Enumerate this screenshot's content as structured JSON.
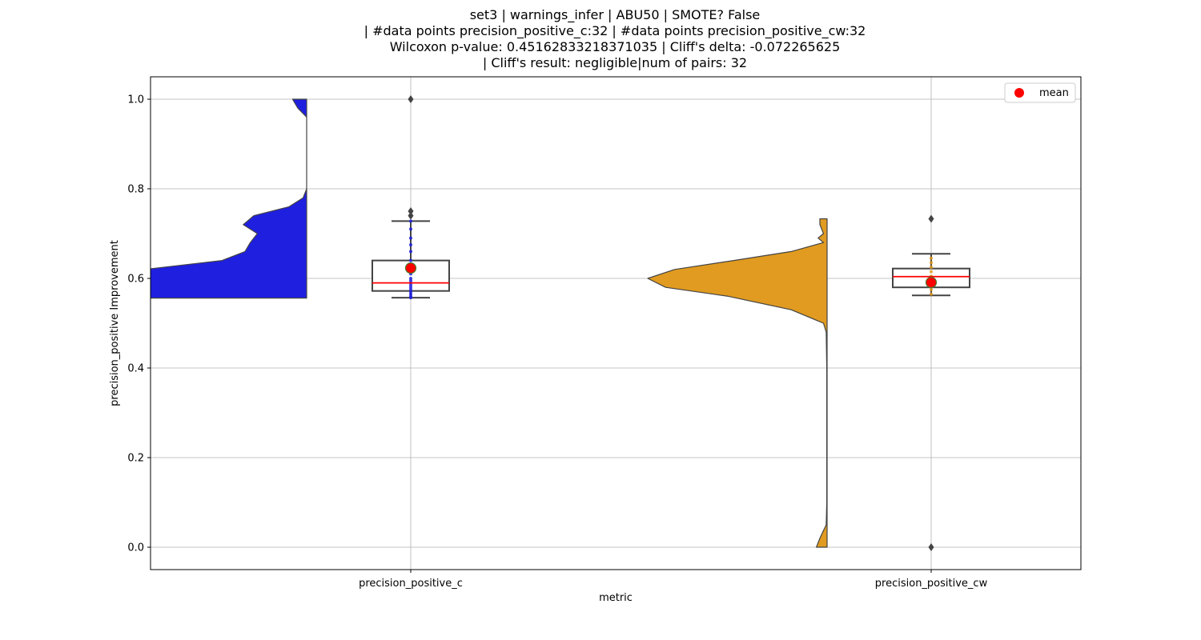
{
  "title_lines": [
    "set3 | warnings_infer | ABU50 | SMOTE? False",
    "| #data points precision_positive_c:32 | #data points precision_positive_cw:32",
    "Wilcoxon p-value: 0.45162833218371035 | Cliff's delta: -0.072265625",
    "| Cliff's result: negligible|num of pairs: 32"
  ],
  "chart_data": {
    "type": "violin+box",
    "title": "set3 | warnings_infer | ABU50 | SMOTE? False | #data points precision_positive_c:32 | #data points precision_positive_cw:32 Wilcoxon p-value: 0.45162833218371035 | Cliff's delta: -0.072265625 | Cliff's result: negligible|num of pairs: 32",
    "xlabel": "metric",
    "ylabel": "precision_positive Improvement",
    "categories": [
      "precision_positive_c",
      "precision_positive_cw"
    ],
    "ylim": [
      -0.05,
      1.05
    ],
    "yticks": [
      0.0,
      0.2,
      0.4,
      0.6,
      0.8,
      1.0
    ],
    "ytick_labels": [
      "0.0",
      "0.2",
      "0.4",
      "0.6",
      "0.8",
      "1.0"
    ],
    "grid": true,
    "legend": {
      "placement": "top-right",
      "entries": [
        {
          "label": "mean",
          "color": "#ff0000"
        }
      ]
    },
    "series": [
      {
        "category": "precision_positive_c",
        "color": "#1f1fe0",
        "violin": {
          "y": [
            0.556,
            0.56,
            0.58,
            0.6,
            0.62,
            0.64,
            0.66,
            0.68,
            0.7,
            0.72,
            0.74,
            0.76,
            0.78,
            0.8,
            0.85,
            0.9,
            0.96,
            0.98,
            1.0
          ],
          "density": [
            1.08,
            1.1,
            1.22,
            1.25,
            0.92,
            0.48,
            0.35,
            0.32,
            0.28,
            0.36,
            0.3,
            0.1,
            0.02,
            0.0,
            0.0,
            0.0,
            0.0,
            0.05,
            0.08
          ]
        },
        "box": {
          "q1": 0.572,
          "median": 0.59,
          "q3": 0.64,
          "whisker_low": 0.557,
          "whisker_high": 0.728
        },
        "mean": 0.623,
        "outliers": [
          0.74,
          0.75,
          1.0
        ],
        "points": [
          0.557,
          0.56,
          0.565,
          0.57,
          0.575,
          0.58,
          0.585,
          0.59,
          0.595,
          0.6,
          0.61,
          0.62,
          0.63,
          0.64,
          0.66,
          0.675,
          0.69,
          0.71,
          0.728
        ]
      },
      {
        "category": "precision_positive_cw",
        "color": "#e09b20",
        "violin": {
          "y": [
            0.0,
            0.02,
            0.05,
            0.1,
            0.2,
            0.3,
            0.4,
            0.48,
            0.5,
            0.53,
            0.56,
            0.58,
            0.6,
            0.62,
            0.64,
            0.66,
            0.68,
            0.69,
            0.7,
            0.72,
            0.733
          ],
          "density": [
            0.06,
            0.04,
            0.005,
            0.002,
            0.002,
            0.002,
            0.002,
            0.005,
            0.02,
            0.2,
            0.55,
            0.9,
            1.0,
            0.85,
            0.52,
            0.2,
            0.02,
            0.05,
            0.02,
            0.04,
            0.04
          ]
        },
        "box": {
          "q1": 0.58,
          "median": 0.604,
          "q3": 0.622,
          "whisker_low": 0.562,
          "whisker_high": 0.655
        },
        "mean": 0.591,
        "outliers": [
          0.0,
          0.733
        ],
        "points": [
          0.565,
          0.575,
          0.585,
          0.595,
          0.605,
          0.615,
          0.625,
          0.635,
          0.645
        ]
      }
    ]
  }
}
